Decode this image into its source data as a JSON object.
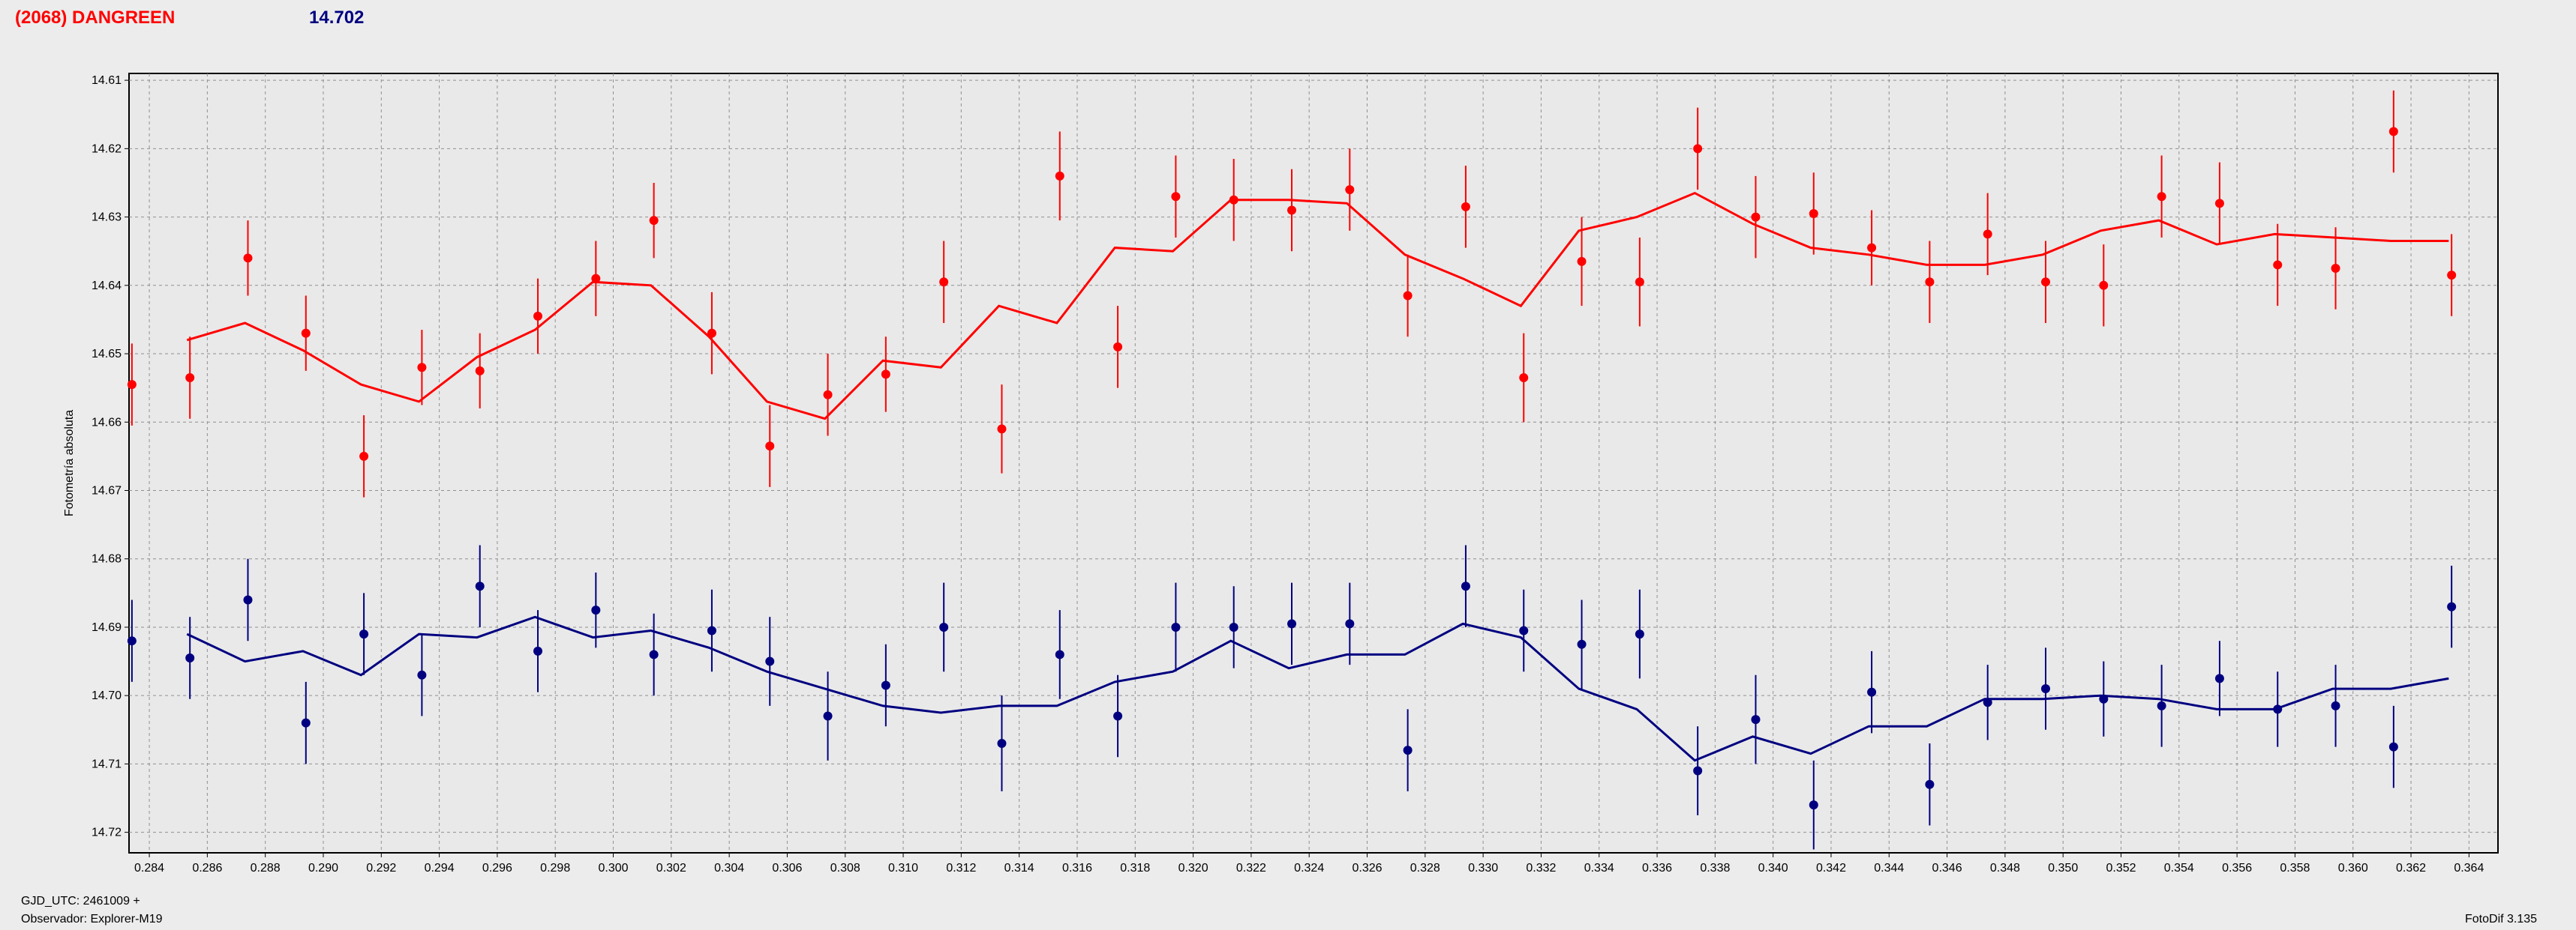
{
  "header": {
    "object_name": "(2068) DANGREEN",
    "magnitude": "14.702"
  },
  "footer": {
    "gjd": "GJD_UTC: 2461009 +",
    "observer": "Observador: Explorer-M19",
    "software": "FotoDif 3.135"
  },
  "colors": {
    "series_red": "#ff0000",
    "series_blue": "#000080",
    "grid": "#909090",
    "plot_bg": "#e9e9e9"
  },
  "chart_data": {
    "type": "scatter",
    "ylabel": "Fotometría absoluta",
    "xlabel": "",
    "xlim": [
      0.2833,
      0.365
    ],
    "ylim": [
      14.723,
      14.609
    ],
    "y_inverted": true,
    "grid": true,
    "x_ticks": [
      "0.284",
      "0.286",
      "0.288",
      "0.290",
      "0.292",
      "0.294",
      "0.296",
      "0.298",
      "0.300",
      "0.302",
      "0.304",
      "0.306",
      "0.308",
      "0.310",
      "0.312",
      "0.314",
      "0.316",
      "0.318",
      "0.320",
      "0.322",
      "0.324",
      "0.326",
      "0.328",
      "0.330",
      "0.332",
      "0.334",
      "0.336",
      "0.338",
      "0.340",
      "0.342",
      "0.344",
      "0.346",
      "0.348",
      "0.350",
      "0.352",
      "0.354",
      "0.356",
      "0.358",
      "0.360",
      "0.362",
      "0.364"
    ],
    "y_ticks": [
      "14.61",
      "14.62",
      "14.63",
      "14.64",
      "14.65",
      "14.66",
      "14.67",
      "14.68",
      "14.69",
      "14.70",
      "14.71",
      "14.72"
    ],
    "series": [
      {
        "color": "#ff0000",
        "x": [
          0.2834,
          0.2854,
          0.2874,
          0.2894,
          0.2914,
          0.2934,
          0.2954,
          0.2974,
          0.2994,
          0.3014,
          0.3034,
          0.3054,
          0.3074,
          0.3094,
          0.3114,
          0.3134,
          0.3154,
          0.3174,
          0.3194,
          0.3214,
          0.3234,
          0.3254,
          0.3274,
          0.3294,
          0.3314,
          0.3334,
          0.3354,
          0.3374,
          0.3394,
          0.3414,
          0.3434,
          0.3454,
          0.3474,
          0.3494,
          0.3514,
          0.3534,
          0.3554,
          0.3574,
          0.3594,
          0.3614,
          0.3634
        ],
        "y": [
          14.6545,
          14.6535,
          14.636,
          14.647,
          14.665,
          14.652,
          14.6525,
          14.6445,
          14.639,
          14.6305,
          14.647,
          14.6635,
          14.656,
          14.653,
          14.6395,
          14.661,
          14.624,
          14.649,
          14.627,
          14.6275,
          14.629,
          14.626,
          14.6415,
          14.6285,
          14.6535,
          14.6365,
          14.6395,
          14.62,
          14.63,
          14.6295,
          14.6345,
          14.6395,
          14.6325,
          14.6395,
          14.64,
          14.627,
          14.628,
          14.637,
          14.6375,
          14.6175,
          14.6385
        ],
        "err": [
          0.006,
          0.006,
          0.0055,
          0.0055,
          0.006,
          0.0055,
          0.0055,
          0.0055,
          0.0055,
          0.0055,
          0.006,
          0.006,
          0.006,
          0.0055,
          0.006,
          0.0065,
          0.0065,
          0.006,
          0.006,
          0.006,
          0.006,
          0.006,
          0.006,
          0.006,
          0.0065,
          0.0065,
          0.0065,
          0.006,
          0.006,
          0.006,
          0.0055,
          0.006,
          0.006,
          0.006,
          0.006,
          0.006,
          0.006,
          0.006,
          0.006,
          0.006,
          0.006
        ],
        "fit_x": [
          0.2853,
          0.2873,
          0.2893,
          0.2913,
          0.2933,
          0.2953,
          0.2973,
          0.2993,
          0.3013,
          0.3033,
          0.3053,
          0.3073,
          0.3093,
          0.3113,
          0.3133,
          0.3153,
          0.3173,
          0.3193,
          0.3213,
          0.3233,
          0.3253,
          0.3273,
          0.3293,
          0.3313,
          0.3333,
          0.3353,
          0.3373,
          0.3393,
          0.3413,
          0.3433,
          0.3453,
          0.3473,
          0.3493,
          0.3513,
          0.3533,
          0.3553,
          0.3573,
          0.3593,
          0.3613,
          0.3633
        ],
        "fit_y": [
          14.648,
          14.6455,
          14.6495,
          14.6545,
          14.657,
          14.6505,
          14.6465,
          14.6395,
          14.64,
          14.6475,
          14.657,
          14.6595,
          14.651,
          14.652,
          14.643,
          14.6455,
          14.6345,
          14.635,
          14.6275,
          14.6275,
          14.628,
          14.6355,
          14.639,
          14.643,
          14.632,
          14.63,
          14.6265,
          14.631,
          14.6345,
          14.6355,
          14.637,
          14.637,
          14.6355,
          14.632,
          14.6305,
          14.634,
          14.6325,
          14.633,
          14.6335,
          14.6335
        ]
      },
      {
        "color": "#000080",
        "x": [
          0.2834,
          0.2854,
          0.2874,
          0.2894,
          0.2914,
          0.2934,
          0.2954,
          0.2974,
          0.2994,
          0.3014,
          0.3034,
          0.3054,
          0.3074,
          0.3094,
          0.3114,
          0.3134,
          0.3154,
          0.3174,
          0.3194,
          0.3214,
          0.3234,
          0.3254,
          0.3274,
          0.3294,
          0.3314,
          0.3334,
          0.3354,
          0.3374,
          0.3394,
          0.3414,
          0.3434,
          0.3454,
          0.3474,
          0.3494,
          0.3514,
          0.3534,
          0.3554,
          0.3574,
          0.3594,
          0.3614,
          0.3634
        ],
        "y": [
          14.692,
          14.6945,
          14.686,
          14.704,
          14.691,
          14.697,
          14.684,
          14.6935,
          14.6875,
          14.694,
          14.6905,
          14.695,
          14.703,
          14.6985,
          14.69,
          14.707,
          14.694,
          14.703,
          14.69,
          14.69,
          14.6895,
          14.6895,
          14.708,
          14.684,
          14.6905,
          14.6925,
          14.691,
          14.711,
          14.7035,
          14.716,
          14.6995,
          14.713,
          14.701,
          14.699,
          14.7005,
          14.7015,
          14.6975,
          14.702,
          14.7015,
          14.7075,
          14.687
        ],
        "err": [
          0.006,
          0.006,
          0.006,
          0.006,
          0.006,
          0.006,
          0.006,
          0.006,
          0.0055,
          0.006,
          0.006,
          0.0065,
          0.0065,
          0.006,
          0.0065,
          0.007,
          0.0065,
          0.006,
          0.0065,
          0.006,
          0.006,
          0.006,
          0.006,
          0.006,
          0.006,
          0.0065,
          0.0065,
          0.0065,
          0.0065,
          0.0065,
          0.006,
          0.006,
          0.0055,
          0.006,
          0.0055,
          0.006,
          0.0055,
          0.0055,
          0.006,
          0.006,
          0.006
        ],
        "fit_x": [
          0.2853,
          0.2873,
          0.2893,
          0.2913,
          0.2933,
          0.2953,
          0.2973,
          0.2993,
          0.3013,
          0.3033,
          0.3053,
          0.3073,
          0.3093,
          0.3113,
          0.3133,
          0.3153,
          0.3173,
          0.3193,
          0.3213,
          0.3233,
          0.3253,
          0.3273,
          0.3293,
          0.3313,
          0.3333,
          0.3353,
          0.3373,
          0.3393,
          0.3413,
          0.3433,
          0.3453,
          0.3473,
          0.3493,
          0.3513,
          0.3533,
          0.3553,
          0.3573,
          0.3593,
          0.3613,
          0.3633
        ],
        "fit_y": [
          14.691,
          14.695,
          14.6935,
          14.697,
          14.691,
          14.6915,
          14.6885,
          14.6915,
          14.6905,
          14.693,
          14.6965,
          14.699,
          14.7015,
          14.7025,
          14.7015,
          14.7015,
          14.698,
          14.6965,
          14.692,
          14.696,
          14.694,
          14.694,
          14.6895,
          14.6915,
          14.699,
          14.702,
          14.7095,
          14.706,
          14.7085,
          14.7045,
          14.7045,
          14.7005,
          14.7005,
          14.7,
          14.7005,
          14.702,
          14.702,
          14.699,
          14.699,
          14.6975
        ]
      }
    ]
  }
}
